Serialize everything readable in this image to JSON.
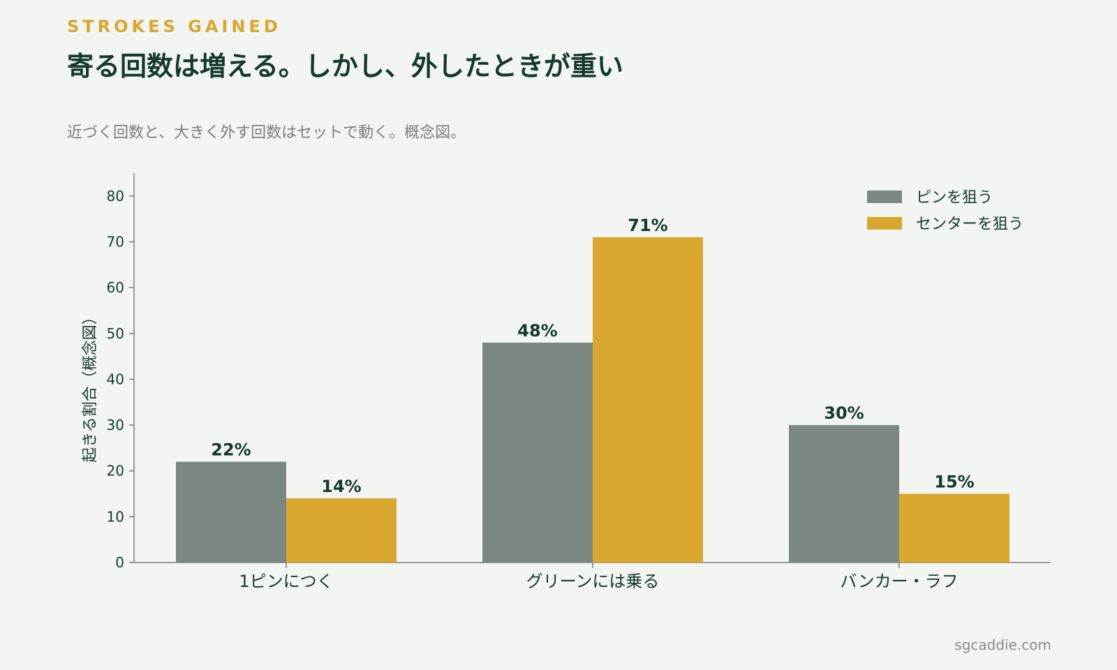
{
  "header": {
    "eyebrow": "STROKES GAINED",
    "title": "寄る回数は増える。しかし、外したときが重い",
    "subtitle": "近づく回数と、大きく外す回数はセットで動く。概念図。"
  },
  "footer": {
    "source": "sgcaddie.com"
  },
  "colors": {
    "pin": "#7b8882",
    "center": "#d9a62e",
    "text_dark": "#14392e",
    "axis": "#7a7d7a",
    "background": "#f3f5f2"
  },
  "chart_data": {
    "type": "bar",
    "title": "寄る回数は増える。しかし、外したときが重い",
    "subtitle": "近づく回数と、大きく外す回数はセットで動く。概念図。",
    "ylabel": "起きる割合（概念図）",
    "xlabel": "",
    "ylim": [
      0,
      85
    ],
    "yticks": [
      0,
      10,
      20,
      30,
      40,
      50,
      60,
      70,
      80
    ],
    "categories": [
      "1ピンにつく",
      "グリーンには乗る",
      "バンカー・ラフ"
    ],
    "series": [
      {
        "name": "ピンを狙う",
        "values": [
          22,
          48,
          30
        ],
        "labels": [
          "22%",
          "48%",
          "30%"
        ],
        "color": "#7b8882"
      },
      {
        "name": "センターを狙う",
        "values": [
          14,
          71,
          15
        ],
        "labels": [
          "14%",
          "71%",
          "15%"
        ],
        "color": "#d9a62e"
      }
    ],
    "legend": "top-right",
    "grid": false
  }
}
